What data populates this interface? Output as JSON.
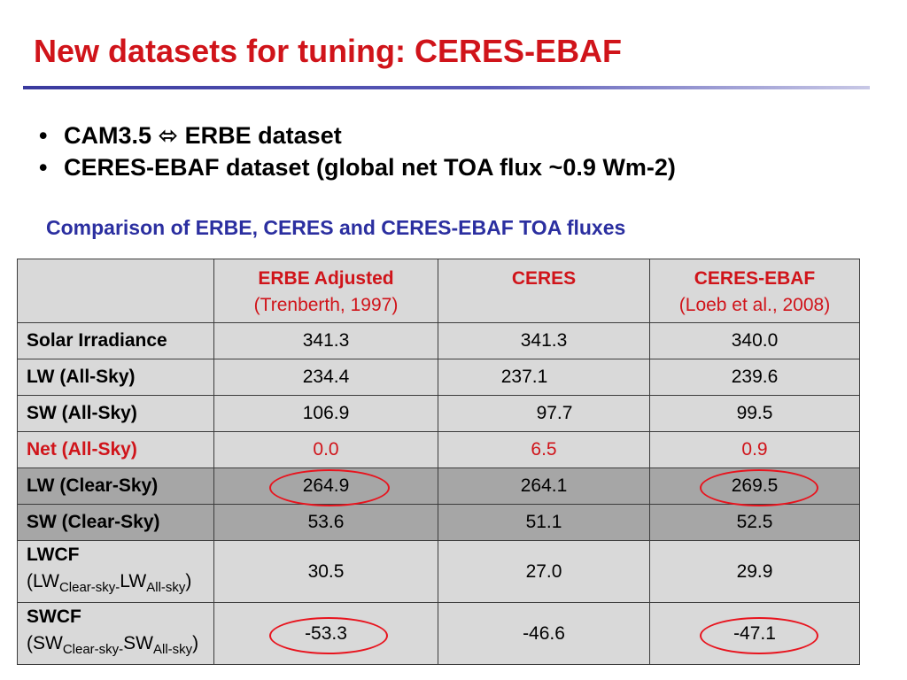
{
  "slide": {
    "title": "New datasets for tuning: CERES-EBAF",
    "bullets": [
      "CAM3.5 ⬄ ERBE dataset",
      "CERES-EBAF dataset (global net TOA flux ~0.9 Wm-2)"
    ],
    "bullet_glyph": "•",
    "table_caption": "Comparison of ERBE, CERES and CERES-EBAF TOA fluxes"
  },
  "table": {
    "headers": [
      {
        "name": "ERBE Adjusted",
        "note": "(Trenberth, 1997)"
      },
      {
        "name": "CERES",
        "note": ""
      },
      {
        "name": "CERES-EBAF",
        "note": "(Loeb et al., 2008)"
      }
    ],
    "rows": [
      {
        "label": "Solar Irradiance",
        "values": [
          "341.3",
          "341.3",
          "340.0"
        ]
      },
      {
        "label": "LW (All-Sky)",
        "values": [
          "234.4",
          "237.1",
          "239.6"
        ]
      },
      {
        "label": "SW (All-Sky)",
        "values": [
          "106.9",
          "97.7",
          "99.5"
        ]
      },
      {
        "label": "Net (All-Sky)",
        "values": [
          "0.0",
          "6.5",
          "0.9"
        ]
      },
      {
        "label": "LW (Clear-Sky)",
        "values": [
          "264.9",
          "264.1",
          "269.5"
        ]
      },
      {
        "label": "SW (Clear-Sky)",
        "values": [
          "53.6",
          "51.1",
          "52.5"
        ]
      },
      {
        "label": "LWCF",
        "sub": {
          "a": "LW",
          "a_sub": "Clear-sky-",
          "b": "LW",
          "b_sub": "All-sky"
        },
        "values": [
          "30.5",
          "27.0",
          "29.9"
        ]
      },
      {
        "label": "SWCF",
        "sub": {
          "a": "SW",
          "a_sub": "Clear-sky-",
          "b": "SW",
          "b_sub": "All-sky"
        },
        "values": [
          "-53.3",
          "-46.6",
          "-47.1"
        ]
      }
    ]
  },
  "colors": {
    "title_red": "#d0141a",
    "caption_blue": "#2b2fa0",
    "cell_light": "#d9d9d9",
    "cell_dark": "#a6a6a6",
    "highlight_circle": "#e8141e"
  }
}
